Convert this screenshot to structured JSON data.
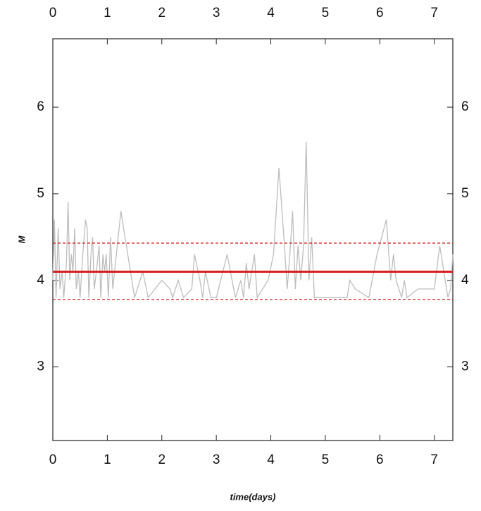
{
  "chart_data": {
    "type": "line",
    "x_label": "time(days)",
    "y_label": "M",
    "xlim": [
      0,
      7.34
    ],
    "ylim": [
      2.15,
      6.79
    ],
    "xticks": [
      0,
      1,
      2,
      3,
      4,
      5,
      6,
      7
    ],
    "yticks": [
      3,
      4,
      5,
      6
    ],
    "series": [
      {
        "color": "#bdbdbd",
        "x": [
          0,
          0.03,
          0.06,
          0.1,
          0.13,
          0.17,
          0.2,
          0.25,
          0.28,
          0.31,
          0.34,
          0.37,
          0.4,
          0.43,
          0.47,
          0.5,
          0.55,
          0.6,
          0.63,
          0.66,
          0.7,
          0.73,
          0.76,
          0.8,
          0.85,
          0.88,
          0.92,
          0.95,
          0.98,
          1.02,
          1.06,
          1.1,
          1.15,
          1.25,
          1.35,
          1.5,
          1.65,
          1.75,
          2.0,
          2.15,
          2.2,
          2.3,
          2.4,
          2.55,
          2.6,
          2.7,
          2.75,
          2.8,
          2.9,
          3.0,
          3.2,
          3.35,
          3.45,
          3.5,
          3.55,
          3.6,
          3.7,
          3.75,
          3.85,
          3.95,
          4.05,
          4.15,
          4.25,
          4.3,
          4.35,
          4.4,
          4.45,
          4.5,
          4.55,
          4.6,
          4.65,
          4.7,
          4.75,
          4.8,
          5.0,
          5.4,
          5.45,
          5.55,
          5.8,
          5.95,
          6.12,
          6.2,
          6.25,
          6.3,
          6.4,
          6.45,
          6.5,
          6.7,
          7.0,
          7.1,
          7.15,
          7.25,
          7.3,
          7.34
        ],
        "values": [
          4.0,
          4.7,
          3.8,
          4.6,
          3.9,
          4.1,
          3.8,
          4.2,
          4.9,
          4.0,
          4.3,
          4.1,
          4.6,
          3.9,
          4.1,
          3.8,
          4.3,
          4.7,
          4.6,
          3.8,
          4.3,
          4.5,
          3.9,
          4.1,
          4.4,
          3.8,
          4.3,
          4.1,
          4.3,
          3.8,
          4.5,
          3.9,
          4.2,
          4.8,
          4.4,
          3.8,
          4.1,
          3.8,
          4.0,
          3.9,
          3.8,
          4.0,
          3.8,
          3.9,
          4.3,
          4.0,
          3.8,
          4.1,
          3.8,
          3.8,
          4.3,
          3.8,
          4.0,
          3.8,
          4.2,
          3.9,
          4.3,
          3.8,
          3.9,
          4.0,
          4.3,
          5.3,
          4.4,
          3.9,
          4.3,
          4.8,
          3.9,
          4.4,
          4.0,
          4.4,
          5.6,
          4.0,
          4.5,
          3.8,
          3.8,
          3.8,
          4.0,
          3.9,
          3.8,
          4.3,
          4.7,
          4.0,
          4.3,
          4.0,
          3.8,
          4.0,
          3.8,
          3.9,
          3.9,
          4.4,
          4.2,
          3.8,
          3.9,
          4.3
        ]
      }
    ],
    "reference_lines": [
      {
        "value": 4.1,
        "color": "#d62020",
        "dashed": false
      },
      {
        "value": 4.43,
        "color": "#d62020",
        "dashed": true
      },
      {
        "value": 3.78,
        "color": "#d62020",
        "dashed": true
      }
    ]
  }
}
